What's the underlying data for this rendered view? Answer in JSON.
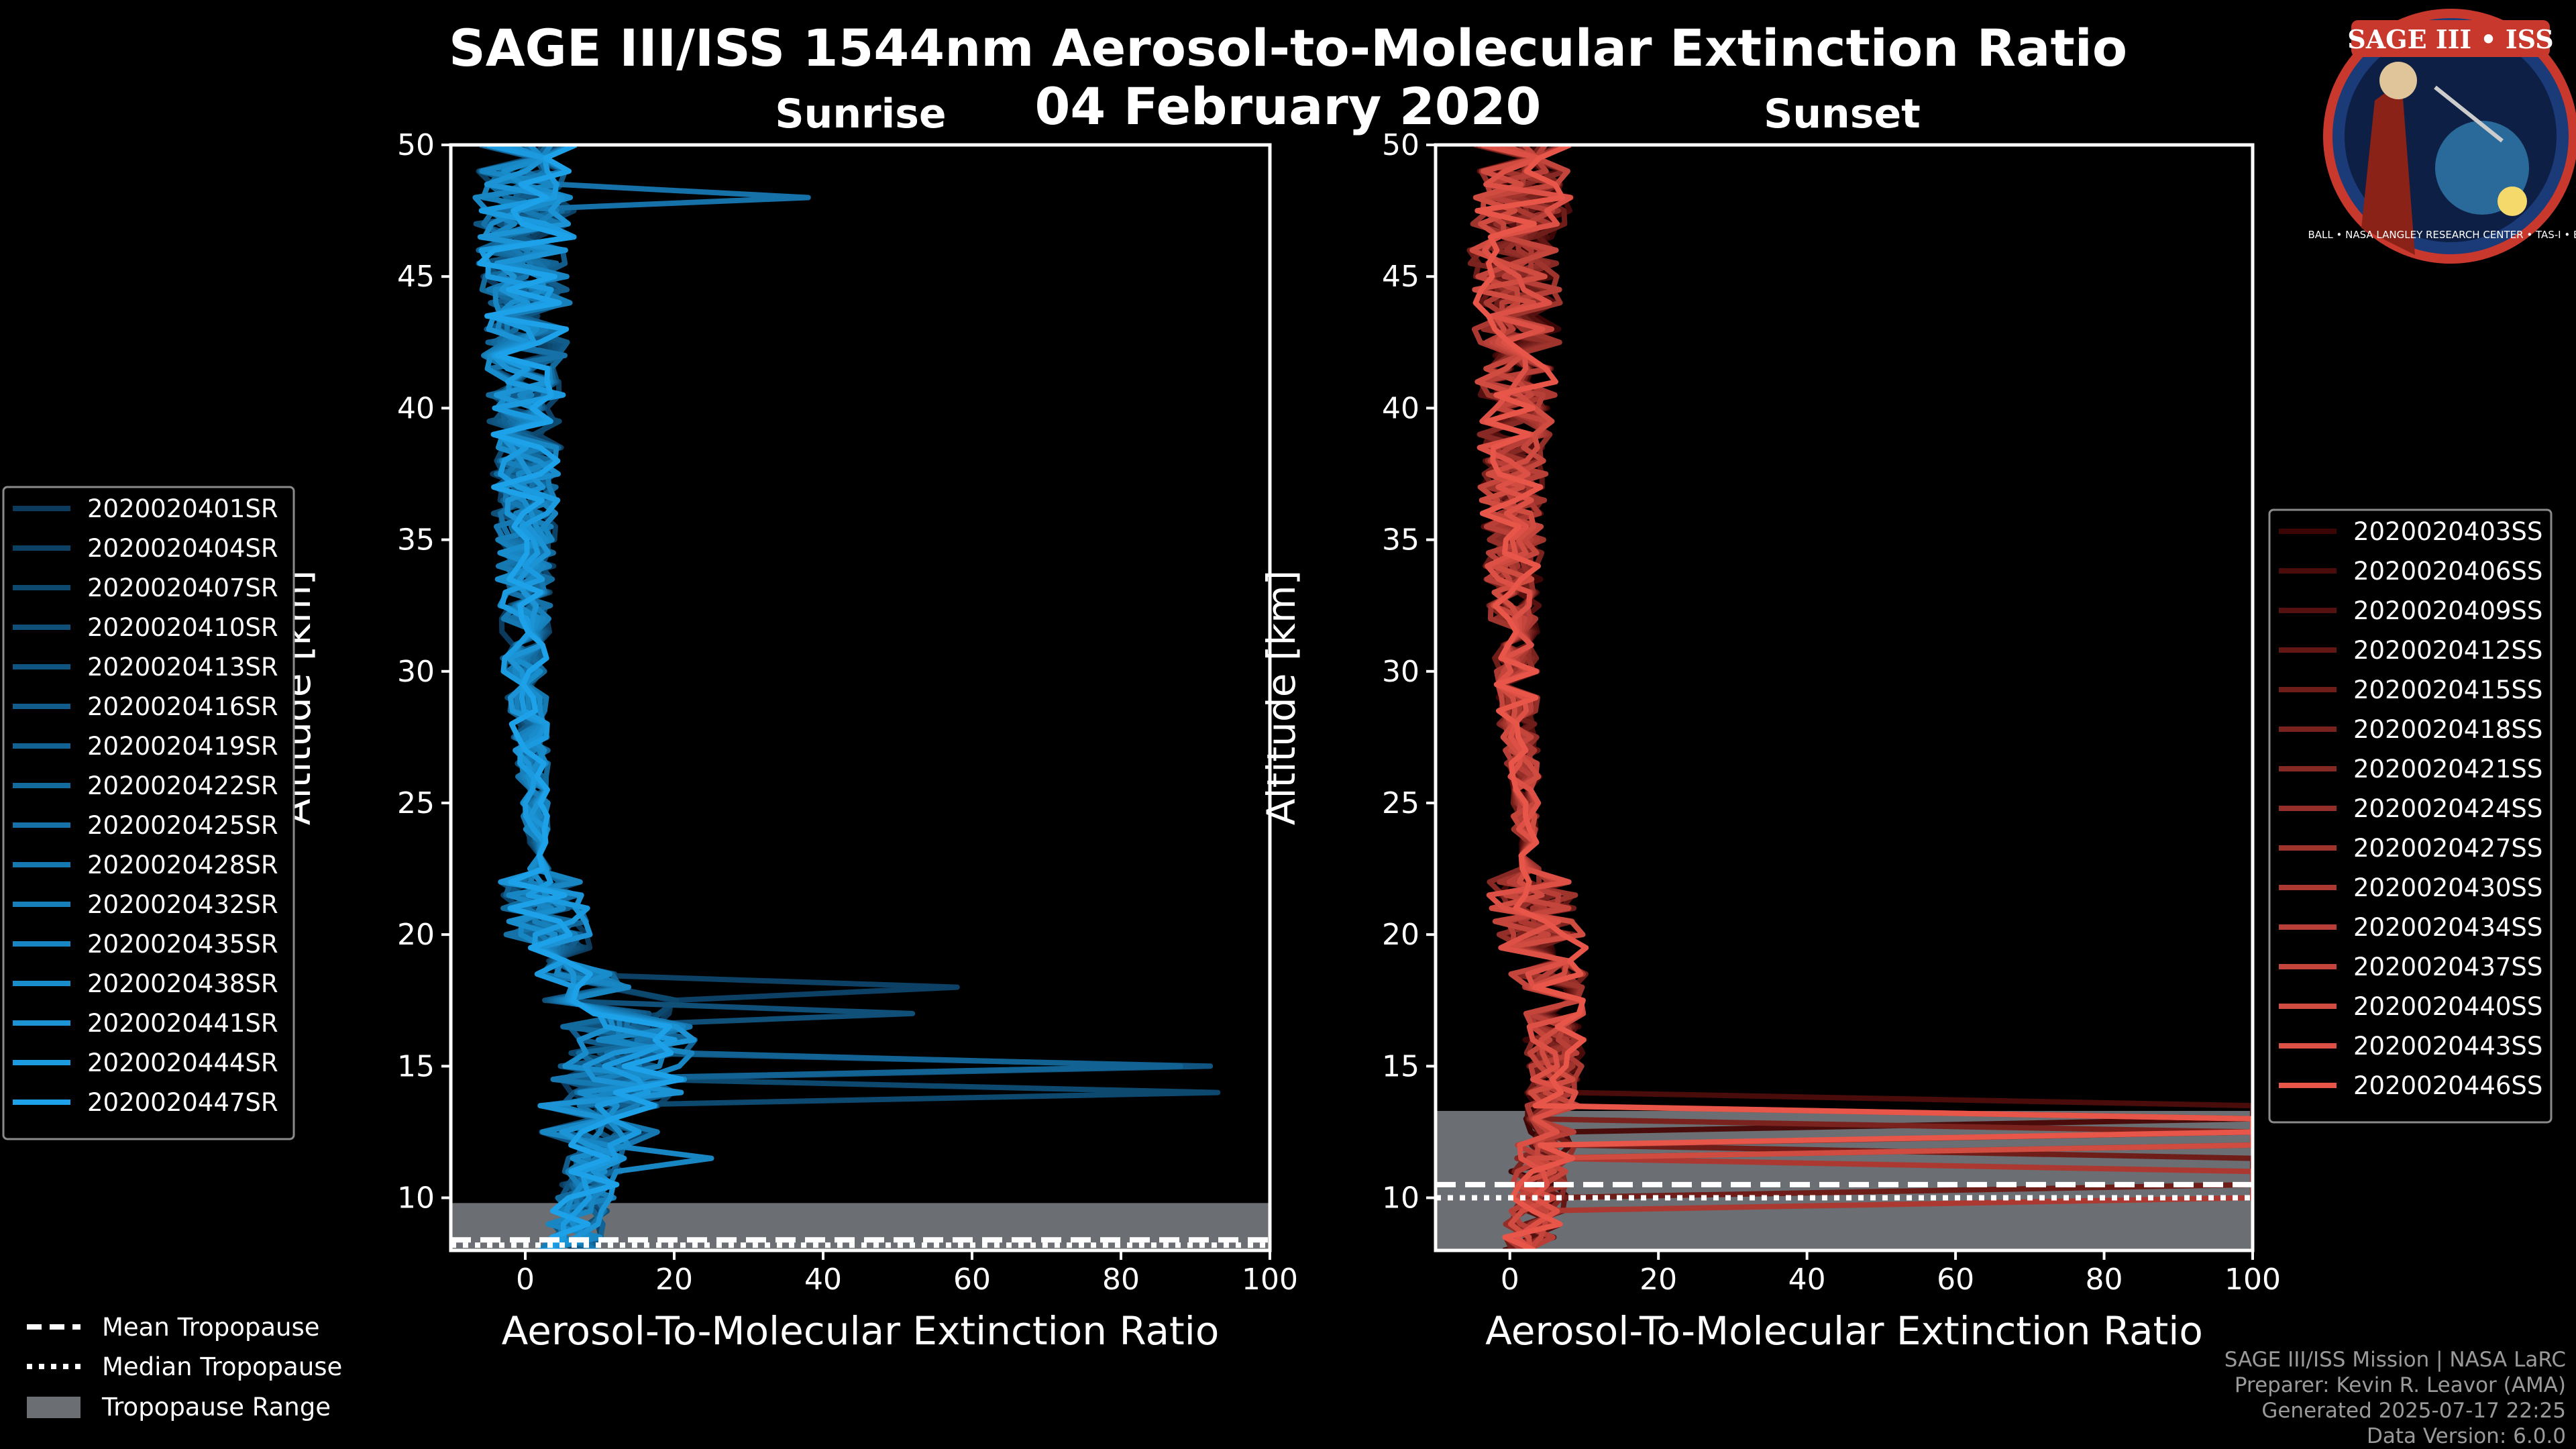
{
  "title_line1": "SAGE III/ISS 1544nm Aerosol-to-Molecular Extinction Ratio",
  "title_line2": "04 February 2020",
  "logo": {
    "name": "SAGE III • ISS",
    "ring_text": "BALL • NASA LANGLEY RESEARCH CENTER • TAS-I • ESA"
  },
  "footer": {
    "line1": "SAGE III/ISS Mission | NASA LaRC",
    "line2": "Preparer: Kevin R. Leavor (AMA)",
    "line3": "Generated 2025-07-17 22:25",
    "line4": "Data Version: 6.0.0"
  },
  "chart_data": [
    {
      "type": "line",
      "panel": "sunrise",
      "title": "Sunrise",
      "xlabel": "Aerosol-To-Molecular Extinction Ratio",
      "ylabel": "Altitude [km]",
      "xlim": [
        -10,
        100
      ],
      "ylim": [
        8,
        50
      ],
      "xticks": [
        0,
        20,
        40,
        60,
        80,
        100
      ],
      "yticks": [
        10,
        15,
        20,
        25,
        30,
        35,
        40,
        45,
        50
      ],
      "color_dark": "#0b3a5c",
      "color_light": "#1da1e8",
      "tropopause": {
        "mean_km": 8.4,
        "median_km": 8.2,
        "range_km": [
          8.0,
          9.8
        ]
      },
      "series_names": [
        "2020020401SR",
        "2020020404SR",
        "2020020407SR",
        "2020020410SR",
        "2020020413SR",
        "2020020416SR",
        "2020020419SR",
        "2020020422SR",
        "2020020425SR",
        "2020020428SR",
        "2020020432SR",
        "2020020435SR",
        "2020020438SR",
        "2020020441SR",
        "2020020444SR",
        "2020020447SR"
      ],
      "base_profile": {
        "alt": [
          8,
          9,
          10,
          11,
          12,
          13,
          14,
          15,
          16,
          17,
          18,
          19,
          20,
          21,
          22,
          24,
          26,
          28,
          30,
          32,
          34,
          36,
          38,
          40,
          42,
          44,
          46,
          48,
          50
        ],
        "ratio": [
          6,
          7,
          8,
          9,
          10,
          10,
          12,
          13,
          14,
          13,
          10,
          5,
          3,
          2.5,
          2,
          1.5,
          1,
          0.5,
          0,
          0,
          0,
          0,
          0,
          0,
          0,
          0,
          0,
          0,
          0
        ]
      },
      "spikes": [
        {
          "series": 2,
          "alt": 14.2,
          "value": 93
        },
        {
          "series": 4,
          "alt": 15.0,
          "value": 92
        },
        {
          "series": 6,
          "alt": 14.8,
          "value": 88
        },
        {
          "series": 1,
          "alt": 17.9,
          "value": 58
        },
        {
          "series": 3,
          "alt": 17.2,
          "value": 52
        },
        {
          "series": 8,
          "alt": 47.9,
          "value": 38
        },
        {
          "series": 11,
          "alt": 11.7,
          "value": 25
        }
      ]
    },
    {
      "type": "line",
      "panel": "sunset",
      "title": "Sunset",
      "xlabel": "Aerosol-To-Molecular Extinction Ratio",
      "ylabel": "Altitude [km]",
      "xlim": [
        -10,
        100
      ],
      "ylim": [
        8,
        50
      ],
      "xticks": [
        0,
        20,
        40,
        60,
        80,
        100
      ],
      "yticks": [
        10,
        15,
        20,
        25,
        30,
        35,
        40,
        45,
        50
      ],
      "color_dark": "#3d0606",
      "color_light": "#e8564a",
      "tropopause": {
        "mean_km": 10.5,
        "median_km": 10.0,
        "range_km": [
          8.0,
          13.3
        ]
      },
      "series_names": [
        "2020020403SS",
        "2020020406SS",
        "2020020409SS",
        "2020020412SS",
        "2020020415SS",
        "2020020418SS",
        "2020020421SS",
        "2020020424SS",
        "2020020427SS",
        "2020020430SS",
        "2020020434SS",
        "2020020437SS",
        "2020020440SS",
        "2020020443SS",
        "2020020446SS"
      ],
      "base_profile": {
        "alt": [
          8,
          9,
          10,
          11,
          12,
          13,
          14,
          15,
          16,
          17,
          18,
          19,
          20,
          21,
          22,
          24,
          26,
          28,
          30,
          32,
          34,
          36,
          38,
          40,
          42,
          44,
          46,
          48,
          50
        ],
        "ratio": [
          3,
          3,
          4,
          4,
          5,
          5,
          6,
          6,
          6,
          6,
          6,
          5,
          4,
          3,
          3,
          2,
          2,
          1,
          1,
          0.5,
          0.5,
          0.5,
          0.5,
          1,
          1,
          1,
          1,
          2,
          2
        ]
      },
      "spikes": [
        {
          "series": 1,
          "alt": 13.3,
          "value": 100
        },
        {
          "series": 3,
          "alt": 12.8,
          "value": 100
        },
        {
          "series": 5,
          "alt": 12.3,
          "value": 100
        },
        {
          "series": 7,
          "alt": 13.0,
          "value": 100
        },
        {
          "series": 9,
          "alt": 10.5,
          "value": 100
        },
        {
          "series": 12,
          "alt": 12.6,
          "value": 100
        },
        {
          "series": 14,
          "alt": 13.1,
          "value": 100
        },
        {
          "series": 4,
          "alt": 11.1,
          "value": 100
        }
      ]
    }
  ],
  "tropo_legend": {
    "mean": "Mean Tropopause",
    "median": "Median Tropopause",
    "range": "Tropopause Range",
    "range_color": "#6b6e72"
  }
}
